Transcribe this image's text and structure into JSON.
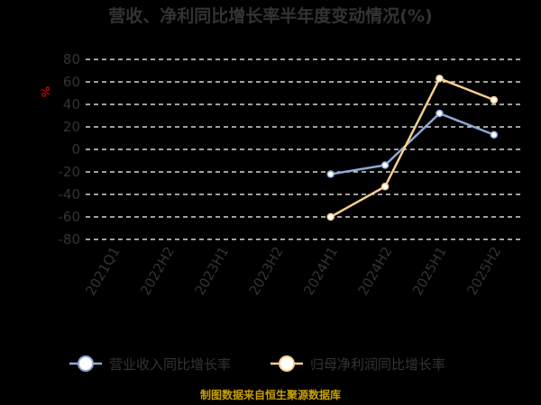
{
  "chart_data": {
    "type": "line",
    "title": "营收、净利同比增长率半年度变动情况(%)",
    "ylabel": "%",
    "categories": [
      "2021Q1",
      "2022H2",
      "2023H1",
      "2023H2",
      "2024H1",
      "2024H2",
      "2025H1",
      "2025H2"
    ],
    "y_ticks": [
      "80",
      "60",
      "40",
      "20",
      "0",
      "-20",
      "-40",
      "-60",
      "-80"
    ],
    "ylim": [
      -80,
      80
    ],
    "grid": true,
    "legend_position": "bottom",
    "series": [
      {
        "name": "营业收入同比增长率",
        "color": "#8fa9d6",
        "values": [
          null,
          null,
          null,
          null,
          -22,
          -14,
          32,
          13
        ]
      },
      {
        "name": "归母净利润同比增长率",
        "color": "#f9cf8f",
        "values": [
          null,
          null,
          null,
          null,
          -60,
          -33,
          63,
          44
        ]
      }
    ],
    "source": "制图数据来自恒生聚源数据库"
  }
}
